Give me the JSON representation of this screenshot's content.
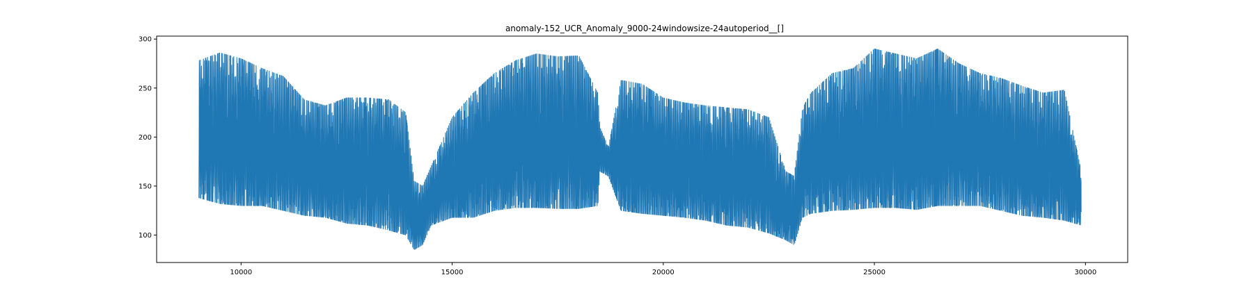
{
  "chart_data": {
    "type": "line",
    "title": "anomaly-152_UCR_Anomaly_9000-24windowsize-24autoperiod__[]",
    "xlabel": "",
    "ylabel": "",
    "xlim": [
      8000,
      31000
    ],
    "ylim": [
      72,
      303
    ],
    "x_ticks": [
      10000,
      15000,
      20000,
      25000,
      30000
    ],
    "y_ticks": [
      100,
      150,
      200,
      250,
      300
    ],
    "grid": false,
    "legend": "none",
    "line_color": "#1f77b4",
    "series": [
      {
        "x_start": 9000,
        "x_end": 29900,
        "period": 24,
        "envelope": {
          "x": [
            9000,
            9500,
            10000,
            10500,
            11000,
            11500,
            12000,
            12500,
            13000,
            13500,
            13900,
            14100,
            14300,
            14500,
            15000,
            15500,
            16000,
            16500,
            17000,
            17500,
            18000,
            18450,
            18500,
            18700,
            19000,
            19500,
            20000,
            20500,
            21000,
            21500,
            22000,
            22500,
            22900,
            23100,
            23300,
            23500,
            24000,
            24500,
            25000,
            25500,
            26000,
            26500,
            27000,
            27500,
            28000,
            28500,
            29000,
            29500,
            29900
          ],
          "high": [
            278,
            286,
            280,
            270,
            262,
            238,
            232,
            240,
            240,
            238,
            225,
            155,
            150,
            170,
            220,
            245,
            265,
            278,
            285,
            282,
            283,
            245,
            210,
            190,
            258,
            254,
            240,
            235,
            232,
            230,
            228,
            220,
            165,
            160,
            230,
            245,
            265,
            270,
            290,
            285,
            280,
            290,
            275,
            265,
            260,
            252,
            245,
            248,
            165
          ],
          "low": [
            138,
            132,
            130,
            130,
            125,
            120,
            118,
            112,
            110,
            105,
            100,
            85,
            90,
            110,
            118,
            118,
            125,
            128,
            128,
            127,
            127,
            130,
            165,
            160,
            125,
            122,
            120,
            118,
            115,
            110,
            108,
            102,
            95,
            90,
            118,
            122,
            125,
            126,
            128,
            128,
            126,
            130,
            130,
            130,
            125,
            120,
            118,
            115,
            110
          ]
        }
      }
    ]
  }
}
